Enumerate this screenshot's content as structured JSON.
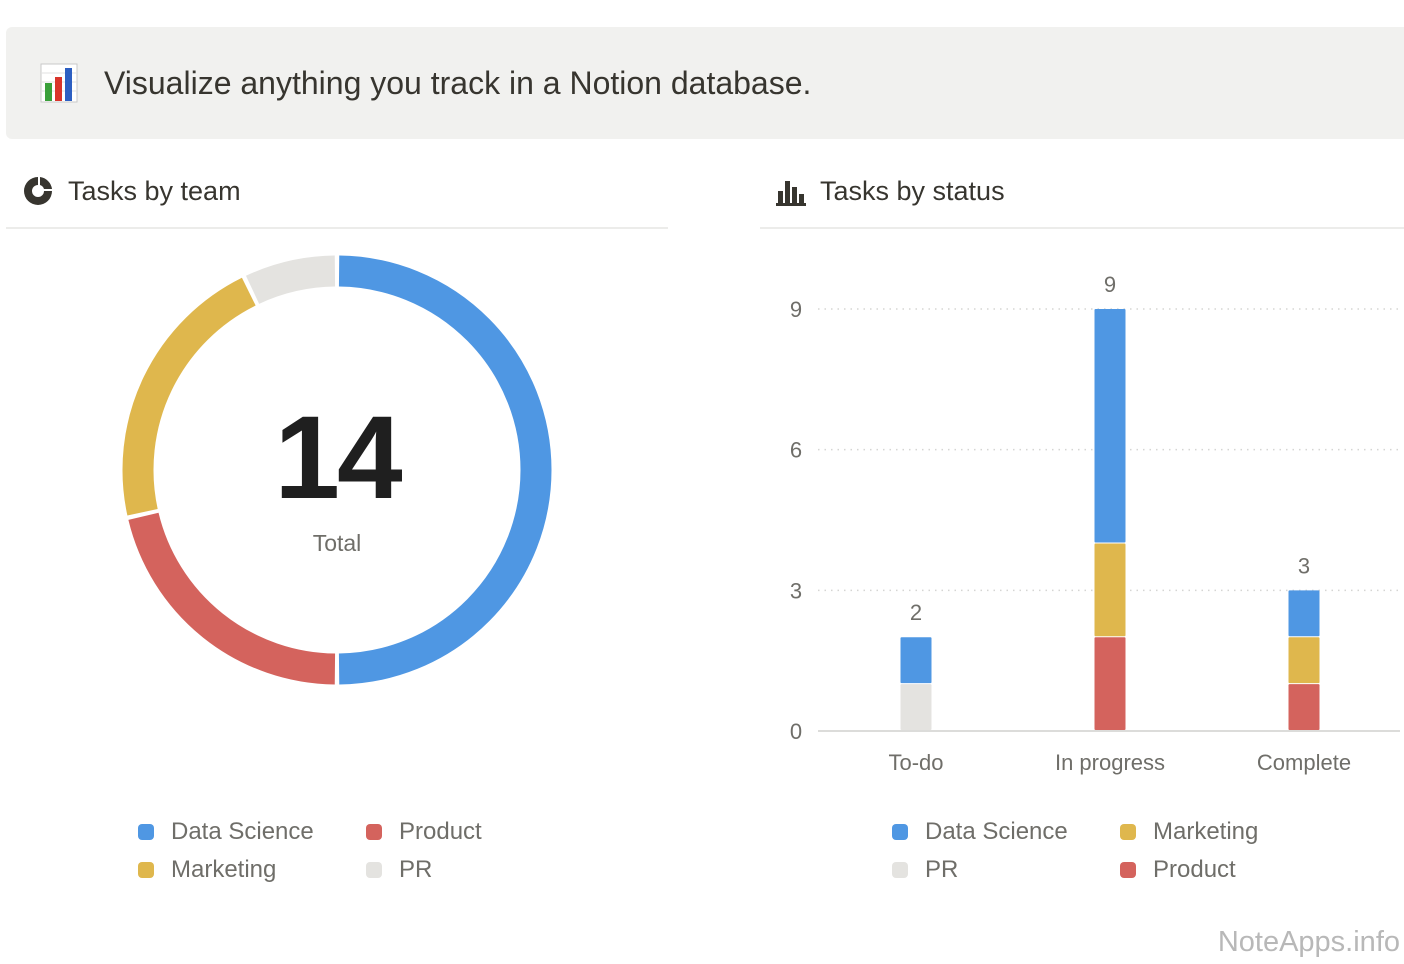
{
  "callout": {
    "icon": "bar-chart-emoji-icon",
    "text": "Visualize anything you track in a Notion database."
  },
  "left_section": {
    "icon": "donut-chart-icon",
    "title": "Tasks by team"
  },
  "right_section": {
    "icon": "bar-chart-icon",
    "title": "Tasks by status"
  },
  "watermark": "NoteApps.info",
  "chart_data": [
    {
      "type": "pie",
      "title": "Tasks by team",
      "center_value": "14",
      "center_label": "Total",
      "categories": [
        "Data Science",
        "Product",
        "Marketing",
        "PR"
      ],
      "values": [
        7,
        3,
        3,
        1
      ],
      "colors": [
        "#4f97e3",
        "#d4635d",
        "#dfb74d",
        "#e4e3e0"
      ],
      "legend": [
        "Data Science",
        "Product",
        "Marketing",
        "PR"
      ],
      "legend_placement": "bottom"
    },
    {
      "type": "bar",
      "stacked": true,
      "title": "Tasks by status",
      "categories": [
        "To-do",
        "In progress",
        "Complete"
      ],
      "series": [
        {
          "name": "Product",
          "values": [
            0,
            2,
            1
          ],
          "color": "#d4635d"
        },
        {
          "name": "Marketing",
          "values": [
            0,
            2,
            1
          ],
          "color": "#dfb74d"
        },
        {
          "name": "PR",
          "values": [
            1,
            0,
            0
          ],
          "color": "#e4e3e0"
        },
        {
          "name": "Data Science",
          "values": [
            1,
            5,
            1
          ],
          "color": "#4f97e3"
        }
      ],
      "totals": [
        "2",
        "9",
        "3"
      ],
      "ylim": [
        0,
        9
      ],
      "yticks": [
        "0",
        "3",
        "6",
        "9"
      ],
      "grid": true,
      "legend": [
        "Data Science",
        "Marketing",
        "PR",
        "Product"
      ],
      "legend_placement": "bottom"
    }
  ]
}
